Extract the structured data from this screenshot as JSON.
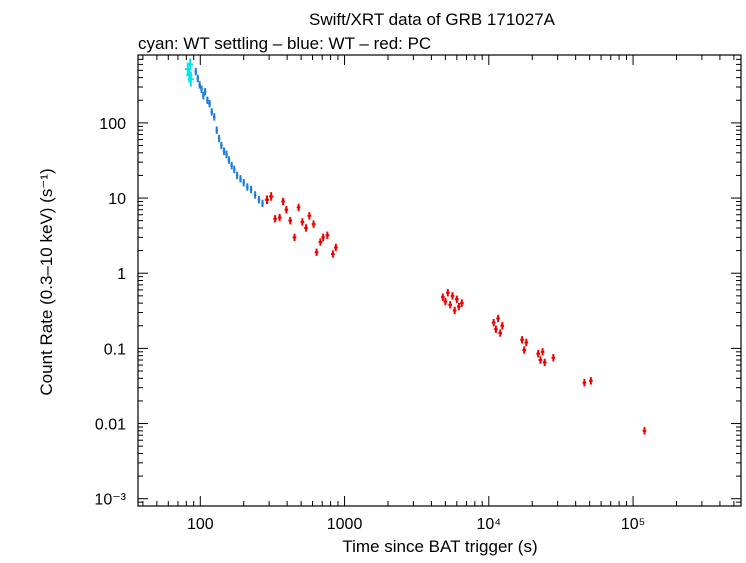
{
  "chart_data": {
    "type": "scatter",
    "title": "Swift/XRT data of GRB 171027A",
    "subtitle": "cyan: WT settling – blue: WT – red: PC",
    "xlabel": "Time since BAT trigger (s)",
    "ylabel": "Count Rate (0.3–10 keV) (s⁻¹)",
    "xscale": "log",
    "yscale": "log",
    "xlim": [
      37,
      560000
    ],
    "ylim": [
      0.0008,
      800
    ],
    "x_ticks": [
      {
        "v": 100,
        "label": "100"
      },
      {
        "v": 1000,
        "label": "1000"
      },
      {
        "v": 10000,
        "label": "10⁴"
      },
      {
        "v": 100000,
        "label": "10⁵"
      }
    ],
    "y_ticks": [
      {
        "v": 100,
        "label": "100"
      },
      {
        "v": 10,
        "label": "10"
      },
      {
        "v": 1,
        "label": "1"
      },
      {
        "v": 0.1,
        "label": "0.1"
      },
      {
        "v": 0.01,
        "label": "0.01"
      },
      {
        "v": 0.001,
        "label": "10⁻³"
      }
    ],
    "grid": false,
    "series": [
      {
        "name": "WT settling",
        "color": "#00e5ee",
        "points": [
          [
            82,
            520,
            0.22,
            0.05
          ],
          [
            84,
            430,
            0.25,
            0.05
          ],
          [
            85,
            600,
            0.2,
            0.05
          ],
          [
            86,
            380,
            0.25,
            0.05
          ]
        ]
      },
      {
        "name": "WT",
        "color": "#1a7be0",
        "points": [
          [
            93,
            480,
            0.12,
            0.02
          ],
          [
            96,
            390,
            0.12,
            0.02
          ],
          [
            99,
            320,
            0.12,
            0.02
          ],
          [
            102,
            280,
            0.12,
            0.02
          ],
          [
            105,
            230,
            0.12,
            0.02
          ],
          [
            108,
            260,
            0.12,
            0.02
          ],
          [
            112,
            200,
            0.12,
            0.02
          ],
          [
            116,
            180,
            0.12,
            0.02
          ],
          [
            120,
            140,
            0.12,
            0.02
          ],
          [
            125,
            120,
            0.12,
            0.02
          ],
          [
            130,
            80,
            0.12,
            0.02
          ],
          [
            135,
            62,
            0.12,
            0.02
          ],
          [
            140,
            50,
            0.12,
            0.02
          ],
          [
            146,
            42,
            0.12,
            0.02
          ],
          [
            152,
            38,
            0.12,
            0.02
          ],
          [
            158,
            32,
            0.12,
            0.02
          ],
          [
            165,
            27,
            0.12,
            0.02
          ],
          [
            172,
            24,
            0.12,
            0.02
          ],
          [
            180,
            20,
            0.12,
            0.02
          ],
          [
            190,
            18,
            0.12,
            0.02
          ],
          [
            200,
            16,
            0.12,
            0.02
          ],
          [
            212,
            14,
            0.12,
            0.02
          ],
          [
            225,
            13,
            0.12,
            0.02
          ],
          [
            240,
            11,
            0.12,
            0.02
          ],
          [
            255,
            9.5,
            0.12,
            0.02
          ],
          [
            270,
            8.5,
            0.12,
            0.02
          ]
        ]
      },
      {
        "name": "PC",
        "color": "#ee0000",
        "points": [
          [
            290,
            9.5,
            0.14,
            0.035
          ],
          [
            310,
            10.5,
            0.14,
            0.035
          ],
          [
            330,
            5.3,
            0.12,
            0.03
          ],
          [
            355,
            5.5,
            0.12,
            0.03
          ],
          [
            375,
            9.0,
            0.12,
            0.03
          ],
          [
            395,
            7.0,
            0.12,
            0.03
          ],
          [
            420,
            5.0,
            0.12,
            0.03
          ],
          [
            450,
            3.0,
            0.12,
            0.03
          ],
          [
            480,
            7.5,
            0.12,
            0.03
          ],
          [
            510,
            4.8,
            0.12,
            0.03
          ],
          [
            540,
            4.0,
            0.12,
            0.03
          ],
          [
            570,
            5.8,
            0.12,
            0.03
          ],
          [
            610,
            4.5,
            0.12,
            0.03
          ],
          [
            640,
            1.9,
            0.12,
            0.03
          ],
          [
            680,
            2.6,
            0.12,
            0.03
          ],
          [
            710,
            3.0,
            0.12,
            0.03
          ],
          [
            760,
            3.2,
            0.12,
            0.03
          ],
          [
            830,
            1.8,
            0.12,
            0.03
          ],
          [
            870,
            2.2,
            0.12,
            0.03
          ],
          [
            4800,
            0.48,
            0.12,
            0.03
          ],
          [
            5000,
            0.42,
            0.12,
            0.03
          ],
          [
            5200,
            0.55,
            0.12,
            0.03
          ],
          [
            5400,
            0.38,
            0.12,
            0.03
          ],
          [
            5600,
            0.5,
            0.12,
            0.03
          ],
          [
            5800,
            0.32,
            0.12,
            0.03
          ],
          [
            6000,
            0.45,
            0.12,
            0.03
          ],
          [
            6200,
            0.36,
            0.12,
            0.03
          ],
          [
            6500,
            0.4,
            0.12,
            0.03
          ],
          [
            10800,
            0.22,
            0.12,
            0.03
          ],
          [
            11200,
            0.18,
            0.12,
            0.03
          ],
          [
            11600,
            0.25,
            0.12,
            0.03
          ],
          [
            12000,
            0.16,
            0.12,
            0.03
          ],
          [
            12400,
            0.2,
            0.12,
            0.03
          ],
          [
            17000,
            0.13,
            0.12,
            0.03
          ],
          [
            17600,
            0.095,
            0.12,
            0.03
          ],
          [
            18200,
            0.12,
            0.12,
            0.03
          ],
          [
            22000,
            0.085,
            0.12,
            0.03
          ],
          [
            22800,
            0.07,
            0.12,
            0.03
          ],
          [
            23600,
            0.09,
            0.12,
            0.03
          ],
          [
            24400,
            0.065,
            0.12,
            0.03
          ],
          [
            28000,
            0.075,
            0.12,
            0.03
          ],
          [
            46000,
            0.035,
            0.12,
            0.03
          ],
          [
            51000,
            0.037,
            0.12,
            0.03
          ],
          [
            120000,
            0.008,
            0.12,
            0.03
          ]
        ]
      }
    ]
  }
}
